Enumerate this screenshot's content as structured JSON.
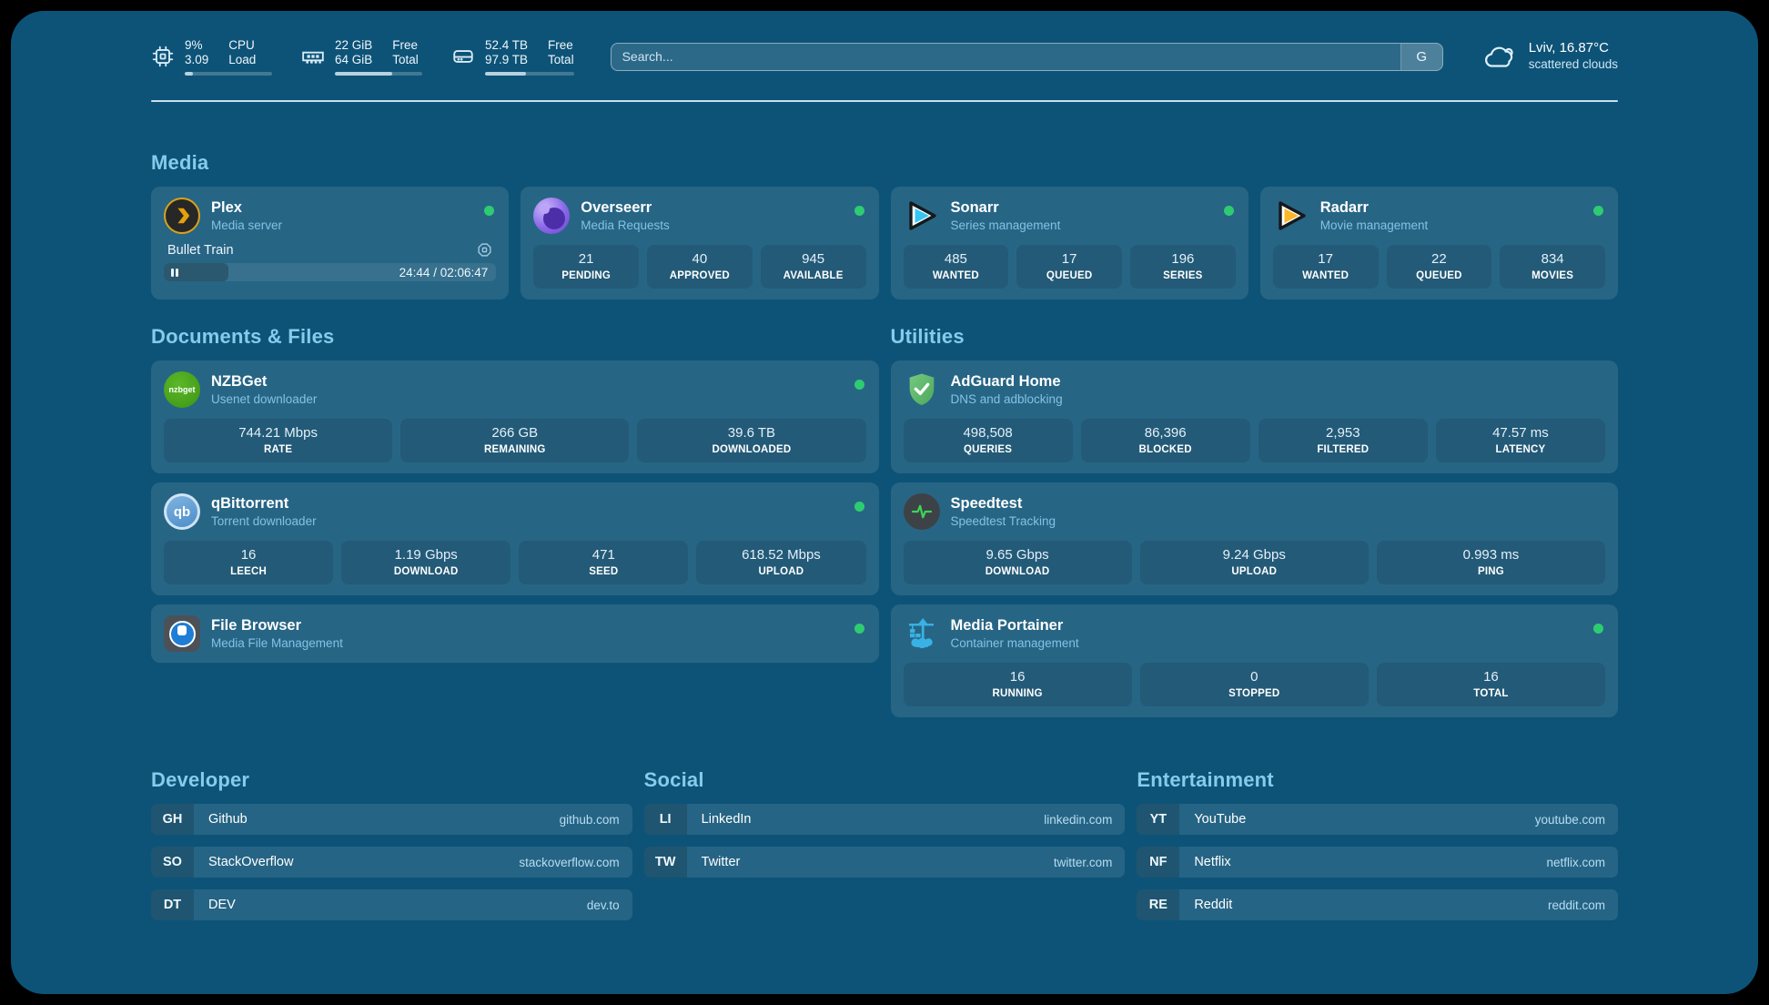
{
  "colors": {
    "background": "#0d5377",
    "heading": "#85cbec",
    "status_online": "#2ecc71"
  },
  "topbar": {
    "resources": [
      {
        "icon": "cpu-icon",
        "values": [
          "9%",
          "3.09"
        ],
        "labels": [
          "CPU",
          "Load"
        ],
        "progress_pct": 9
      },
      {
        "icon": "memory-icon",
        "values": [
          "22 GiB",
          "64 GiB"
        ],
        "labels": [
          "Free",
          "Total"
        ],
        "progress_pct": 66
      },
      {
        "icon": "disk-icon",
        "values": [
          "52.4 TB",
          "97.9 TB"
        ],
        "labels": [
          "Free",
          "Total"
        ],
        "progress_pct": 46
      }
    ],
    "search": {
      "placeholder": "Search...",
      "button_label": "G"
    },
    "weather": {
      "icon": "cloud-icon",
      "summary": "Lviv, 16.87°C",
      "condition": "scattered clouds"
    }
  },
  "media": {
    "title": "Media",
    "plex": {
      "name": "Plex",
      "subtitle": "Media server",
      "icon": "plex-icon",
      "online": true,
      "now_playing": {
        "title": "Bullet Train",
        "state": "paused",
        "time": "24:44 / 02:06:47",
        "progress_pct": 19.5
      }
    },
    "overseerr": {
      "name": "Overseerr",
      "subtitle": "Media Requests",
      "icon": "overseerr-icon",
      "online": true,
      "stats": [
        {
          "value": "21",
          "label": "PENDING"
        },
        {
          "value": "40",
          "label": "APPROVED"
        },
        {
          "value": "945",
          "label": "AVAILABLE"
        }
      ]
    },
    "sonarr": {
      "name": "Sonarr",
      "subtitle": "Series management",
      "icon": "sonarr-icon",
      "online": true,
      "stats": [
        {
          "value": "485",
          "label": "WANTED"
        },
        {
          "value": "17",
          "label": "QUEUED"
        },
        {
          "value": "196",
          "label": "SERIES"
        }
      ]
    },
    "radarr": {
      "name": "Radarr",
      "subtitle": "Movie management",
      "icon": "radarr-icon",
      "online": true,
      "stats": [
        {
          "value": "17",
          "label": "WANTED"
        },
        {
          "value": "22",
          "label": "QUEUED"
        },
        {
          "value": "834",
          "label": "MOVIES"
        }
      ]
    }
  },
  "documents": {
    "title": "Documents & Files",
    "nzbget": {
      "name": "NZBGet",
      "subtitle": "Usenet downloader",
      "icon": "nzbget-icon",
      "online": true,
      "stats": [
        {
          "value": "744.21 Mbps",
          "label": "RATE"
        },
        {
          "value": "266 GB",
          "label": "REMAINING"
        },
        {
          "value": "39.6 TB",
          "label": "DOWNLOADED"
        }
      ]
    },
    "qbittorrent": {
      "name": "qBittorrent",
      "subtitle": "Torrent downloader",
      "icon": "qbittorrent-icon",
      "online": true,
      "stats": [
        {
          "value": "16",
          "label": "LEECH"
        },
        {
          "value": "1.19 Gbps",
          "label": "DOWNLOAD"
        },
        {
          "value": "471",
          "label": "SEED"
        },
        {
          "value": "618.52 Mbps",
          "label": "UPLOAD"
        }
      ]
    },
    "filebrowser": {
      "name": "File Browser",
      "subtitle": "Media File Management",
      "icon": "filebrowser-icon",
      "online": true
    }
  },
  "utilities": {
    "title": "Utilities",
    "adguard": {
      "name": "AdGuard Home",
      "subtitle": "DNS and adblocking",
      "icon": "adguard-icon",
      "online": false,
      "stats": [
        {
          "value": "498,508",
          "label": "QUERIES"
        },
        {
          "value": "86,396",
          "label": "BLOCKED"
        },
        {
          "value": "2,953",
          "label": "FILTERED"
        },
        {
          "value": "47.57 ms",
          "label": "LATENCY"
        }
      ]
    },
    "speedtest": {
      "name": "Speedtest",
      "subtitle": "Speedtest Tracking",
      "icon": "speedtest-icon",
      "online": false,
      "stats": [
        {
          "value": "9.65 Gbps",
          "label": "DOWNLOAD"
        },
        {
          "value": "9.24 Gbps",
          "label": "UPLOAD"
        },
        {
          "value": "0.993 ms",
          "label": "PING"
        }
      ]
    },
    "portainer": {
      "name": "Media Portainer",
      "subtitle": "Container management",
      "icon": "portainer-icon",
      "online": true,
      "stats": [
        {
          "value": "16",
          "label": "RUNNING"
        },
        {
          "value": "0",
          "label": "STOPPED"
        },
        {
          "value": "16",
          "label": "TOTAL"
        }
      ]
    }
  },
  "bookmarks": {
    "developer": {
      "title": "Developer",
      "items": [
        {
          "abbr": "GH",
          "name": "Github",
          "domain": "github.com"
        },
        {
          "abbr": "SO",
          "name": "StackOverflow",
          "domain": "stackoverflow.com"
        },
        {
          "abbr": "DT",
          "name": "DEV",
          "domain": "dev.to"
        }
      ]
    },
    "social": {
      "title": "Social",
      "items": [
        {
          "abbr": "LI",
          "name": "LinkedIn",
          "domain": "linkedin.com"
        },
        {
          "abbr": "TW",
          "name": "Twitter",
          "domain": "twitter.com"
        }
      ]
    },
    "entertainment": {
      "title": "Entertainment",
      "items": [
        {
          "abbr": "YT",
          "name": "YouTube",
          "domain": "youtube.com"
        },
        {
          "abbr": "NF",
          "name": "Netflix",
          "domain": "netflix.com"
        },
        {
          "abbr": "RE",
          "name": "Reddit",
          "domain": "reddit.com"
        }
      ]
    }
  }
}
